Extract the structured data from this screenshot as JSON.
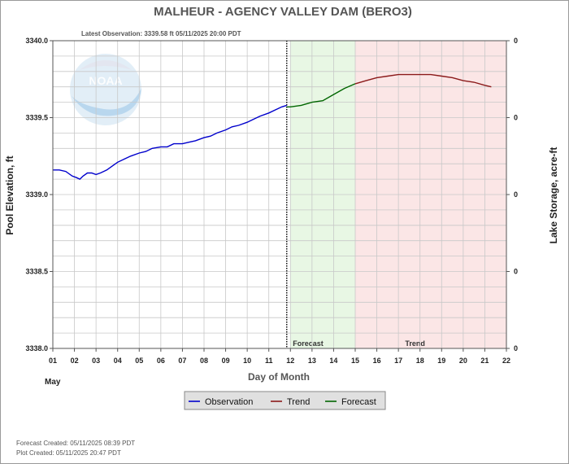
{
  "chart_data": {
    "type": "line",
    "title": "MALHEUR - AGENCY VALLEY DAM  (BERO3)",
    "subtitle": "Latest Observation: 3339.58 ft 05/11/2025 20:00 PDT",
    "xlabel": "Day of Month",
    "x_month_label": "May",
    "ylabel": "Pool Elevation, ft",
    "y2label": "Lake Storage, acre-ft",
    "xlim": [
      1,
      22
    ],
    "ylim": [
      3338.0,
      3340.0
    ],
    "x_ticks": [
      "01",
      "02",
      "03",
      "04",
      "05",
      "06",
      "07",
      "08",
      "09",
      "10",
      "11",
      "12",
      "13",
      "14",
      "15",
      "16",
      "17",
      "18",
      "19",
      "20",
      "21",
      "22"
    ],
    "y_ticks": [
      "3338.0",
      "3338.5",
      "3339.0",
      "3339.5",
      "3340.0"
    ],
    "y2_ticks": [
      "0",
      "0",
      "0",
      "0",
      "0"
    ],
    "current_time_day": 11.83,
    "forecast_region": {
      "start": 12.0,
      "end": 15.0,
      "label": "Forecast",
      "color": "#e8f7e4"
    },
    "trend_region": {
      "start": 15.0,
      "end": 22.0,
      "label": "Trend",
      "color": "#fbe6e6"
    },
    "legend_position": "bottom-center",
    "grid": true,
    "series": [
      {
        "name": "Observation",
        "color": "#0000cc",
        "x": [
          1.0,
          1.3,
          1.6,
          1.9,
          2.1,
          2.25,
          2.4,
          2.6,
          2.8,
          3.0,
          3.2,
          3.5,
          3.8,
          4.0,
          4.3,
          4.6,
          5.0,
          5.3,
          5.6,
          6.0,
          6.3,
          6.6,
          7.0,
          7.3,
          7.6,
          8.0,
          8.3,
          8.6,
          9.0,
          9.3,
          9.6,
          10.0,
          10.3,
          10.6,
          11.0,
          11.3,
          11.6,
          11.83
        ],
        "y": [
          3339.16,
          3339.16,
          3339.15,
          3339.12,
          3339.11,
          3339.1,
          3339.12,
          3339.14,
          3339.14,
          3339.13,
          3339.14,
          3339.16,
          3339.19,
          3339.21,
          3339.23,
          3339.25,
          3339.27,
          3339.28,
          3339.3,
          3339.31,
          3339.31,
          3339.33,
          3339.33,
          3339.34,
          3339.35,
          3339.37,
          3339.38,
          3339.4,
          3339.42,
          3339.44,
          3339.45,
          3339.47,
          3339.49,
          3339.51,
          3339.53,
          3339.55,
          3339.57,
          3339.58
        ]
      },
      {
        "name": "Forecast",
        "color": "#006600",
        "x": [
          11.83,
          12.0,
          12.5,
          13.0,
          13.5,
          14.0,
          14.5,
          15.0
        ],
        "y": [
          3339.57,
          3339.57,
          3339.58,
          3339.6,
          3339.61,
          3339.65,
          3339.69,
          3339.72
        ]
      },
      {
        "name": "Trend",
        "color": "#8b1a1a",
        "x": [
          15.0,
          15.5,
          16.0,
          16.5,
          17.0,
          17.5,
          18.0,
          18.5,
          19.0,
          19.5,
          20.0,
          20.5,
          21.0,
          21.3
        ],
        "y": [
          3339.72,
          3339.74,
          3339.76,
          3339.77,
          3339.78,
          3339.78,
          3339.78,
          3339.78,
          3339.77,
          3339.76,
          3339.74,
          3339.73,
          3339.71,
          3339.7
        ]
      }
    ]
  },
  "footer": {
    "forecast_created": "Forecast Created: 05/11/2025 08:39 PDT",
    "plot_created": "Plot Created: 05/11/2025 20:47 PDT"
  }
}
